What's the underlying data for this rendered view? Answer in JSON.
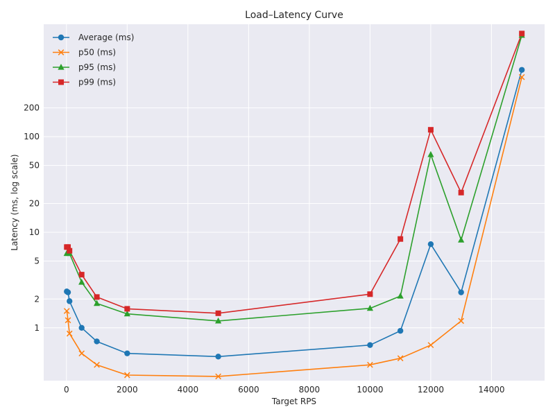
{
  "chart_data": {
    "type": "line",
    "title": "Load–Latency Curve",
    "xlabel": "Target RPS",
    "ylabel": "Latency (ms, log scale)",
    "x_scale": "linear",
    "y_scale": "log",
    "xlim": [
      -750,
      15750
    ],
    "ylim": [
      0.28,
      1500
    ],
    "grid": true,
    "legend_position": "top-left",
    "x_ticks": [
      0,
      2000,
      4000,
      6000,
      8000,
      10000,
      12000,
      14000
    ],
    "y_ticks": [
      1,
      2,
      5,
      10,
      20,
      50,
      100,
      200
    ],
    "x": [
      10,
      50,
      100,
      500,
      1000,
      2000,
      5000,
      10000,
      11000,
      12000,
      13000,
      15000
    ],
    "series": [
      {
        "name": "Average (ms)",
        "color": "#1f77b4",
        "marker": "circle",
        "values": [
          2.4,
          2.35,
          1.9,
          1.0,
          0.72,
          0.54,
          0.5,
          0.66,
          0.93,
          7.5,
          2.35,
          500
        ]
      },
      {
        "name": "p50 (ms)",
        "color": "#ff7f0e",
        "marker": "x",
        "values": [
          1.5,
          1.2,
          0.87,
          0.54,
          0.41,
          0.32,
          0.31,
          0.41,
          0.48,
          0.66,
          1.18,
          420
        ]
      },
      {
        "name": "p95 (ms)",
        "color": "#2ca02c",
        "marker": "triangle",
        "values": [
          6.0,
          6.0,
          6.0,
          3.0,
          1.8,
          1.4,
          1.18,
          1.6,
          2.15,
          65,
          8.3,
          1150
        ]
      },
      {
        "name": "p99 (ms)",
        "color": "#d62728",
        "marker": "square",
        "values": [
          7.0,
          7.0,
          6.4,
          3.6,
          2.1,
          1.58,
          1.42,
          2.25,
          8.5,
          118,
          26,
          1200
        ]
      }
    ]
  }
}
